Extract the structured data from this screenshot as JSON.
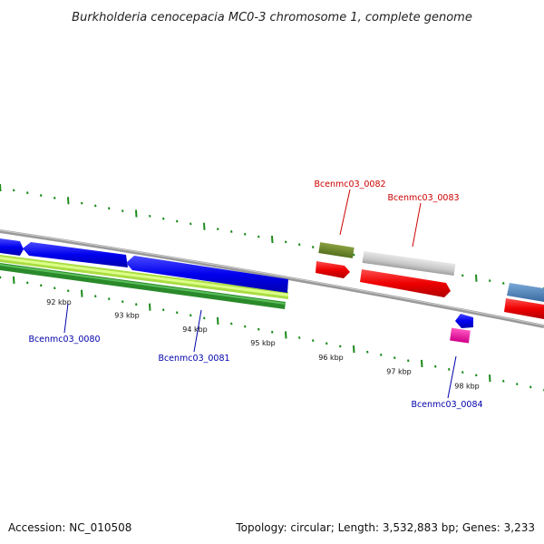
{
  "title": "Burkholderia cenocepacia MC0-3 chromosome 1, complete genome",
  "footer": {
    "accession": "Accession: NC_010508",
    "summary": "Topology: circular; Length: 3,532,883 bp; Genes: 3,233"
  },
  "colors": {
    "backbone": "#888888",
    "tick": "#1a8a1a",
    "top_label": "#cc0000",
    "bottom_label": "#0000aa"
  },
  "ticks": [
    {
      "kbp": 92,
      "label": "92 kbp"
    },
    {
      "kbp": 93,
      "label": "93 kbp"
    },
    {
      "kbp": 94,
      "label": "94 kbp"
    },
    {
      "kbp": 95,
      "label": "95 kbp"
    },
    {
      "kbp": 96,
      "label": "96 kbp"
    },
    {
      "kbp": 97,
      "label": "97 kbp"
    },
    {
      "kbp": 98,
      "label": "98 kbp"
    }
  ],
  "gene_labels": [
    {
      "name": "Bcenmc03_0082",
      "strand": "top"
    },
    {
      "name": "Bcenmc03_0083",
      "strand": "top"
    },
    {
      "name": "Bcenmc03_0080",
      "strand": "bottom"
    },
    {
      "name": "Bcenmc03_0081",
      "strand": "bottom"
    },
    {
      "name": "Bcenmc03_0084",
      "strand": "bottom"
    }
  ]
}
